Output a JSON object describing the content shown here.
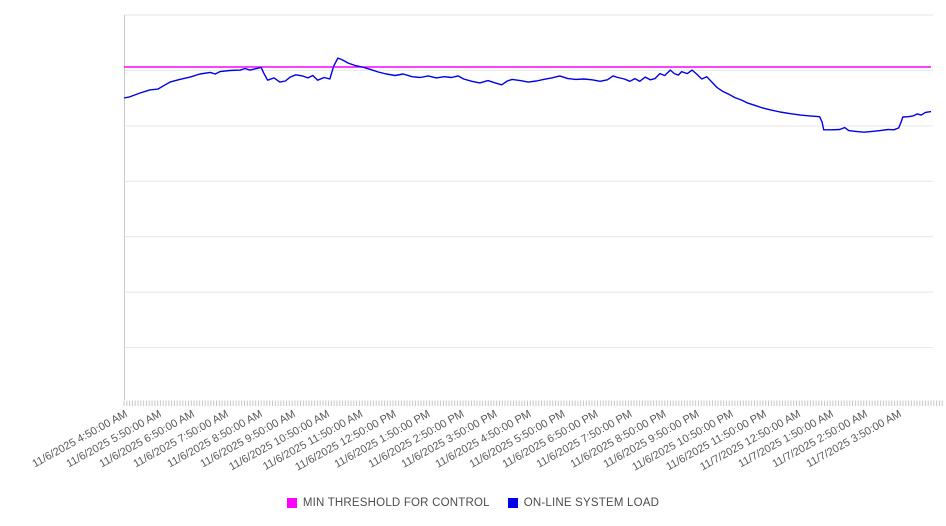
{
  "chart": {
    "legend": [
      {
        "label": "MIN THRESHOLD FOR CONTROL",
        "color": "#ff00ff"
      },
      {
        "label": "ON-LINE SYSTEM LOAD",
        "color": "#0000e6"
      }
    ]
  },
  "chart_data": {
    "type": "line",
    "title": "",
    "xlabel": "",
    "ylabel": "",
    "y_axis": {
      "tick_labels_visible": false,
      "gridline_divisions": 7
    },
    "x_minor_ticks_per_label": 12,
    "x_tick_labels": [
      "11/6/2025 4:50:00 AM",
      "11/6/2025 5:50:00 AM",
      "11/6/2025 6:50:00 AM",
      "11/6/2025 7:50:00 AM",
      "11/6/2025 8:50:00 AM",
      "11/6/2025 9:50:00 AM",
      "11/6/2025 10:50:00 AM",
      "11/6/2025 11:50:00 AM",
      "11/6/2025 12:50:00 PM",
      "11/6/2025 1:50:00 PM",
      "11/6/2025 2:50:00 PM",
      "11/6/2025 3:50:00 PM",
      "11/6/2025 4:50:00 PM",
      "11/6/2025 5:50:00 PM",
      "11/6/2025 6:50:00 PM",
      "11/6/2025 7:50:00 PM",
      "11/6/2025 8:50:00 PM",
      "11/6/2025 9:50:00 PM",
      "11/6/2025 10:50:00 PM",
      "11/6/2025 11:50:00 PM",
      "11/7/2025 12:50:00 AM",
      "11/7/2025 1:50:00 AM",
      "11/7/2025 2:50:00 AM",
      "11/7/2025 3:50:00 AM"
    ],
    "series": [
      {
        "name": "MIN THRESHOLD FOR CONTROL",
        "kind": "constant-threshold",
        "color": "#ff00ff",
        "y_frac": 0.866
      },
      {
        "name": "ON-LINE SYSTEM LOAD",
        "kind": "sampled-line",
        "color": "#0000e6",
        "points_frac": [
          [
            0,
            0.786
          ],
          [
            0.007,
            0.789
          ],
          [
            0.02,
            0.799
          ],
          [
            0.032,
            0.807
          ],
          [
            0.042,
            0.809
          ],
          [
            0.051,
            0.82
          ],
          [
            0.057,
            0.827
          ],
          [
            0.069,
            0.834
          ],
          [
            0.082,
            0.84
          ],
          [
            0.094,
            0.848
          ],
          [
            0.107,
            0.852
          ],
          [
            0.113,
            0.848
          ],
          [
            0.119,
            0.854
          ],
          [
            0.131,
            0.857
          ],
          [
            0.144,
            0.858
          ],
          [
            0.15,
            0.862
          ],
          [
            0.156,
            0.858
          ],
          [
            0.162,
            0.861
          ],
          [
            0.17,
            0.865
          ],
          [
            0.173,
            0.851
          ],
          [
            0.178,
            0.832
          ],
          [
            0.186,
            0.838
          ],
          [
            0.193,
            0.827
          ],
          [
            0.2,
            0.83
          ],
          [
            0.206,
            0.84
          ],
          [
            0.213,
            0.846
          ],
          [
            0.221,
            0.843
          ],
          [
            0.228,
            0.838
          ],
          [
            0.234,
            0.844
          ],
          [
            0.24,
            0.832
          ],
          [
            0.248,
            0.839
          ],
          [
            0.255,
            0.835
          ],
          [
            0.26,
            0.869
          ],
          [
            0.265,
            0.889
          ],
          [
            0.27,
            0.885
          ],
          [
            0.278,
            0.876
          ],
          [
            0.286,
            0.87
          ],
          [
            0.295,
            0.866
          ],
          [
            0.305,
            0.86
          ],
          [
            0.315,
            0.853
          ],
          [
            0.325,
            0.848
          ],
          [
            0.336,
            0.844
          ],
          [
            0.346,
            0.848
          ],
          [
            0.357,
            0.841
          ],
          [
            0.367,
            0.839
          ],
          [
            0.377,
            0.843
          ],
          [
            0.387,
            0.838
          ],
          [
            0.397,
            0.841
          ],
          [
            0.406,
            0.839
          ],
          [
            0.414,
            0.843
          ],
          [
            0.421,
            0.835
          ],
          [
            0.431,
            0.829
          ],
          [
            0.441,
            0.825
          ],
          [
            0.451,
            0.831
          ],
          [
            0.46,
            0.825
          ],
          [
            0.468,
            0.82
          ],
          [
            0.475,
            0.83
          ],
          [
            0.481,
            0.834
          ],
          [
            0.491,
            0.831
          ],
          [
            0.501,
            0.827
          ],
          [
            0.511,
            0.83
          ],
          [
            0.52,
            0.834
          ],
          [
            0.53,
            0.838
          ],
          [
            0.54,
            0.843
          ],
          [
            0.55,
            0.836
          ],
          [
            0.56,
            0.834
          ],
          [
            0.57,
            0.835
          ],
          [
            0.58,
            0.833
          ],
          [
            0.59,
            0.829
          ],
          [
            0.599,
            0.833
          ],
          [
            0.606,
            0.843
          ],
          [
            0.612,
            0.839
          ],
          [
            0.62,
            0.835
          ],
          [
            0.627,
            0.829
          ],
          [
            0.633,
            0.836
          ],
          [
            0.639,
            0.829
          ],
          [
            0.646,
            0.84
          ],
          [
            0.652,
            0.833
          ],
          [
            0.658,
            0.836
          ],
          [
            0.664,
            0.849
          ],
          [
            0.67,
            0.844
          ],
          [
            0.677,
            0.858
          ],
          [
            0.682,
            0.849
          ],
          [
            0.687,
            0.845
          ],
          [
            0.691,
            0.854
          ],
          [
            0.698,
            0.849
          ],
          [
            0.704,
            0.858
          ],
          [
            0.71,
            0.847
          ],
          [
            0.716,
            0.835
          ],
          [
            0.722,
            0.841
          ],
          [
            0.729,
            0.826
          ],
          [
            0.735,
            0.813
          ],
          [
            0.742,
            0.803
          ],
          [
            0.75,
            0.795
          ],
          [
            0.757,
            0.787
          ],
          [
            0.765,
            0.781
          ],
          [
            0.773,
            0.773
          ],
          [
            0.782,
            0.767
          ],
          [
            0.792,
            0.76
          ],
          [
            0.802,
            0.755
          ],
          [
            0.813,
            0.75
          ],
          [
            0.825,
            0.746
          ],
          [
            0.838,
            0.742
          ],
          [
            0.85,
            0.74
          ],
          [
            0.862,
            0.738
          ],
          [
            0.865,
            0.724
          ],
          [
            0.867,
            0.704
          ],
          [
            0.877,
            0.704
          ],
          [
            0.887,
            0.705
          ],
          [
            0.893,
            0.71
          ],
          [
            0.898,
            0.702
          ],
          [
            0.907,
            0.7
          ],
          [
            0.917,
            0.698
          ],
          [
            0.927,
            0.7
          ],
          [
            0.937,
            0.702
          ],
          [
            0.947,
            0.705
          ],
          [
            0.954,
            0.704
          ],
          [
            0.96,
            0.709
          ],
          [
            0.963,
            0.724
          ],
          [
            0.965,
            0.737
          ],
          [
            0.972,
            0.738
          ],
          [
            0.978,
            0.74
          ],
          [
            0.983,
            0.745
          ],
          [
            0.988,
            0.742
          ],
          [
            0.993,
            0.749
          ],
          [
            1,
            0.751
          ]
        ]
      }
    ],
    "legend_position": "bottom-center",
    "grid": true
  }
}
